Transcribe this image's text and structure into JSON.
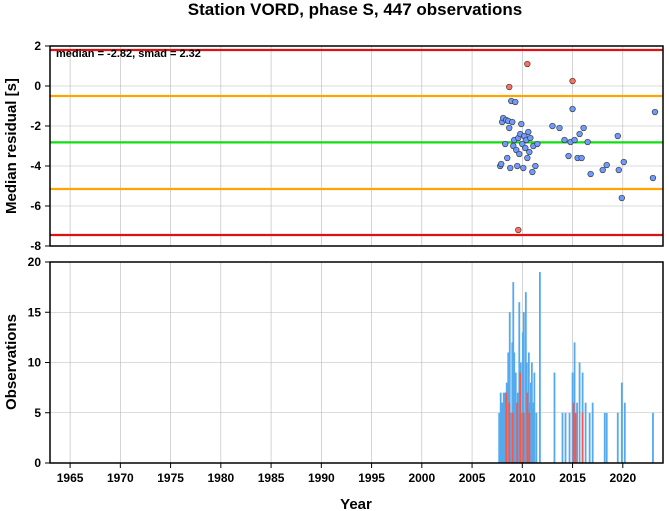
{
  "chart_data": [
    {
      "type": "scatter",
      "title": "Station VORD, phase S, 447 observations",
      "annotation": "median = -2.82, smad = 2.32",
      "ylabel": "Median residual [s]",
      "xlim": [
        1963,
        2024
      ],
      "ylim": [
        -8,
        2
      ],
      "yticks": [
        2,
        0,
        -2,
        -4,
        -6,
        -8
      ],
      "grid": true,
      "reference_lines": [
        {
          "value": 1.8,
          "color": "#dd1111"
        },
        {
          "value": -0.5,
          "color": "#ffa500"
        },
        {
          "value": -2.82,
          "color": "#11dd11"
        },
        {
          "value": -5.15,
          "color": "#ffa500"
        },
        {
          "value": -7.45,
          "color": "#dd1111"
        }
      ],
      "series": [
        {
          "color": "#6f9bff",
          "points": [
            [
              2007.8,
              -4.0
            ],
            [
              2007.9,
              -3.9
            ],
            [
              2008.0,
              -1.8
            ],
            [
              2008.1,
              -1.6
            ],
            [
              2008.3,
              -2.9
            ],
            [
              2008.4,
              -1.7
            ],
            [
              2008.5,
              -3.6
            ],
            [
              2008.6,
              -1.75
            ],
            [
              2008.7,
              -2.1
            ],
            [
              2008.8,
              -4.1
            ],
            [
              2008.9,
              -0.75
            ],
            [
              2009.0,
              -1.8
            ],
            [
              2009.1,
              -3.0
            ],
            [
              2009.2,
              -2.7
            ],
            [
              2009.3,
              -0.8
            ],
            [
              2009.4,
              -3.2
            ],
            [
              2009.5,
              -4.0
            ],
            [
              2009.6,
              -2.6
            ],
            [
              2009.7,
              -3.4
            ],
            [
              2009.8,
              -2.4
            ],
            [
              2009.9,
              -1.9
            ],
            [
              2010.0,
              -2.9
            ],
            [
              2010.1,
              -4.1
            ],
            [
              2010.2,
              -2.5
            ],
            [
              2010.3,
              -3.1
            ],
            [
              2010.4,
              -2.7
            ],
            [
              2010.5,
              -3.6
            ],
            [
              2010.6,
              -2.3
            ],
            [
              2010.7,
              -3.3
            ],
            [
              2010.8,
              -2.6
            ],
            [
              2011.0,
              -4.3
            ],
            [
              2011.1,
              -3.0
            ],
            [
              2011.3,
              -4.0
            ],
            [
              2011.5,
              -2.9
            ],
            [
              2013.0,
              -2.0
            ],
            [
              2013.7,
              -2.1
            ],
            [
              2014.2,
              -2.7
            ],
            [
              2014.6,
              -3.5
            ],
            [
              2014.8,
              -2.8
            ],
            [
              2015.0,
              -1.15
            ],
            [
              2015.2,
              -2.7
            ],
            [
              2015.5,
              -3.6
            ],
            [
              2015.7,
              -2.4
            ],
            [
              2015.9,
              -3.6
            ],
            [
              2016.1,
              -2.1
            ],
            [
              2016.5,
              -2.8
            ],
            [
              2016.8,
              -4.4
            ],
            [
              2018.0,
              -4.2
            ],
            [
              2018.4,
              -3.95
            ],
            [
              2019.5,
              -2.5
            ],
            [
              2019.6,
              -4.2
            ],
            [
              2019.9,
              -5.6
            ],
            [
              2020.1,
              -3.8
            ],
            [
              2023.0,
              -4.6
            ],
            [
              2023.2,
              -1.3
            ]
          ]
        },
        {
          "color": "#ff7060",
          "points": [
            [
              2008.7,
              -0.05
            ],
            [
              2009.6,
              -7.2
            ],
            [
              2010.5,
              1.1
            ],
            [
              2015.0,
              0.25
            ]
          ]
        }
      ]
    },
    {
      "type": "bar",
      "xlabel": "Year",
      "ylabel": "Observations",
      "xlim": [
        1963,
        2024
      ],
      "ylim": [
        0,
        20
      ],
      "xticks": [
        1965,
        1970,
        1975,
        1980,
        1985,
        1990,
        1995,
        2000,
        2005,
        2010,
        2015,
        2020
      ],
      "yticks": [
        0,
        5,
        10,
        15,
        20
      ],
      "grid": true,
      "series": [
        {
          "color": "#55aaee",
          "bars": [
            [
              2007.7,
              5
            ],
            [
              2007.85,
              7
            ],
            [
              2008.0,
              6
            ],
            [
              2008.15,
              7
            ],
            [
              2008.3,
              7
            ],
            [
              2008.45,
              8
            ],
            [
              2008.6,
              11
            ],
            [
              2008.75,
              15
            ],
            [
              2008.9,
              5
            ],
            [
              2009.0,
              12
            ],
            [
              2009.1,
              18
            ],
            [
              2009.2,
              11
            ],
            [
              2009.35,
              9
            ],
            [
              2009.45,
              5
            ],
            [
              2009.55,
              7
            ],
            [
              2009.7,
              16
            ],
            [
              2009.85,
              10
            ],
            [
              2009.95,
              5
            ],
            [
              2010.05,
              13
            ],
            [
              2010.15,
              15
            ],
            [
              2010.25,
              5
            ],
            [
              2010.35,
              17
            ],
            [
              2010.45,
              10
            ],
            [
              2010.55,
              5
            ],
            [
              2010.65,
              11
            ],
            [
              2010.75,
              6
            ],
            [
              2010.85,
              8
            ],
            [
              2010.95,
              10
            ],
            [
              2011.05,
              6
            ],
            [
              2011.2,
              9
            ],
            [
              2011.4,
              5
            ],
            [
              2011.75,
              19
            ],
            [
              2013.2,
              9
            ],
            [
              2014.0,
              5
            ],
            [
              2014.3,
              5
            ],
            [
              2014.7,
              5
            ],
            [
              2015.0,
              9
            ],
            [
              2015.2,
              12
            ],
            [
              2015.45,
              6
            ],
            [
              2015.7,
              10
            ],
            [
              2016.0,
              9
            ],
            [
              2016.3,
              6
            ],
            [
              2016.7,
              5
            ],
            [
              2017.0,
              6
            ],
            [
              2018.2,
              5
            ],
            [
              2018.4,
              5
            ],
            [
              2019.5,
              5
            ],
            [
              2019.9,
              8
            ],
            [
              2020.2,
              6
            ],
            [
              2023.0,
              5
            ]
          ]
        },
        {
          "color": "#ff5544",
          "bars": [
            [
              2008.4,
              7
            ],
            [
              2008.7,
              6
            ],
            [
              2009.05,
              5
            ],
            [
              2009.5,
              6
            ],
            [
              2009.8,
              9
            ],
            [
              2010.1,
              5
            ],
            [
              2010.5,
              7
            ],
            [
              2010.7,
              5
            ],
            [
              2015.1,
              6
            ],
            [
              2015.3,
              5
            ],
            [
              2016.0,
              5
            ]
          ]
        }
      ]
    }
  ]
}
